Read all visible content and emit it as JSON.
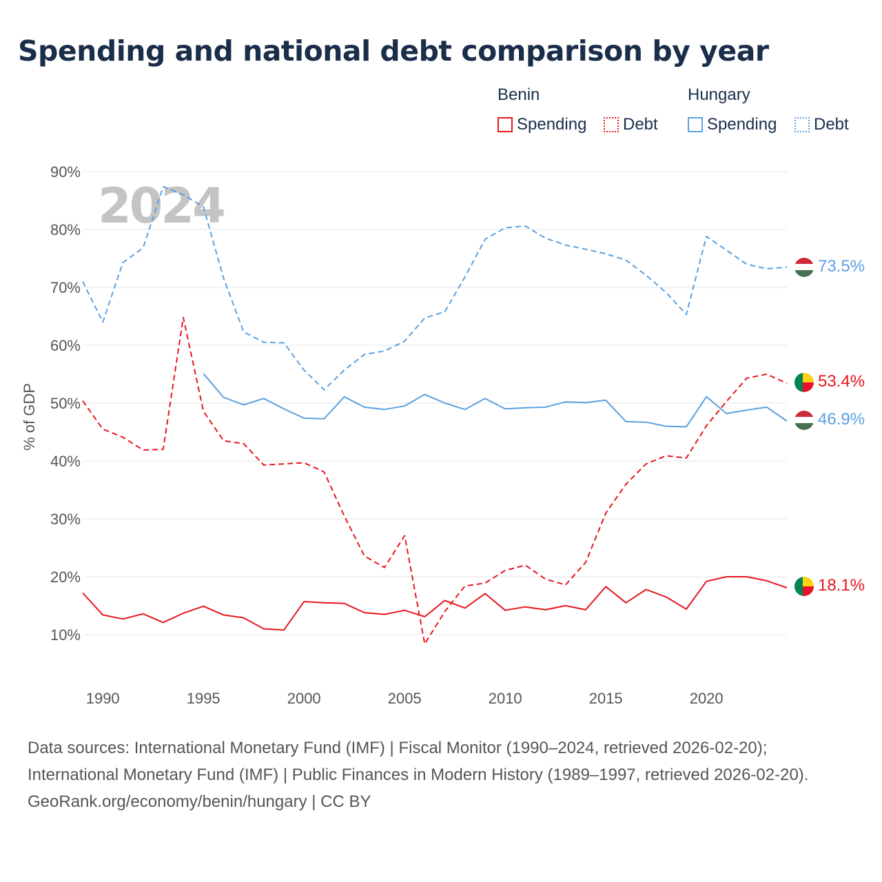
{
  "title": "Spending and national debt comparison by year",
  "legend": {
    "groups": [
      {
        "country": "Benin",
        "color": "#e8141c",
        "items": [
          {
            "label": "Spending",
            "style": "solid"
          },
          {
            "label": "Debt",
            "style": "dashed"
          }
        ]
      },
      {
        "country": "Hungary",
        "color": "#5aa0e0",
        "items": [
          {
            "label": "Spending",
            "style": "solid"
          },
          {
            "label": "Debt",
            "style": "dashed"
          }
        ]
      }
    ]
  },
  "year_watermark": "2024",
  "footer": {
    "sources": "Data sources: International Monetary Fund (IMF) | Fiscal Monitor (1990–2024, retrieved 2026-02-20); International Monetary Fund (IMF) | Public Finances in Modern History (1989–1997, retrieved 2026-02-20).",
    "credit": "GeoRank.org/economy/benin/hungary | CC BY"
  },
  "chart_data": {
    "type": "line",
    "title": "Spending and national debt comparison by year",
    "xlabel": "",
    "ylabel": "% of GDP",
    "xlim": [
      1989,
      2024
    ],
    "ylim": [
      5,
      90
    ],
    "y_ticks": [
      10,
      20,
      30,
      40,
      50,
      60,
      70,
      80,
      90
    ],
    "y_tick_labels": [
      "10%",
      "20%",
      "30%",
      "40%",
      "50%",
      "60%",
      "70%",
      "80%",
      "90%"
    ],
    "x_ticks": [
      1990,
      1995,
      2000,
      2005,
      2010,
      2015,
      2020
    ],
    "x_tick_labels": [
      "1990",
      "1995",
      "2000",
      "2005",
      "2010",
      "2015",
      "2020"
    ],
    "grid": true,
    "legend_position": "top-right",
    "series": [
      {
        "name": "Hungary Debt",
        "country": "Hungary",
        "color": "#5aa0e0",
        "dash": true,
        "end_label": "73.5%",
        "flag": "hungary",
        "x": [
          1989,
          1990,
          1991,
          1992,
          1993,
          1994,
          1995,
          1996,
          1997,
          1998,
          1999,
          2000,
          2001,
          2002,
          2003,
          2004,
          2005,
          2006,
          2007,
          2008,
          2009,
          2010,
          2011,
          2012,
          2013,
          2014,
          2015,
          2016,
          2017,
          2018,
          2019,
          2020,
          2021,
          2022,
          2023,
          2024
        ],
        "values": [
          71.0,
          64.0,
          74.3,
          76.8,
          87.4,
          86.0,
          83.9,
          71.6,
          62.3,
          60.5,
          60.4,
          55.7,
          52.3,
          55.7,
          58.4,
          59.0,
          60.7,
          64.7,
          65.8,
          71.8,
          78.3,
          80.3,
          80.6,
          78.5,
          77.3,
          76.6,
          75.8,
          74.7,
          72.1,
          69.1,
          65.3,
          78.8,
          76.4,
          74.0,
          73.2,
          73.5
        ]
      },
      {
        "name": "Hungary Spending",
        "country": "Hungary",
        "color": "#5aa0e0",
        "dash": false,
        "end_label": "46.9%",
        "flag": "hungary",
        "x": [
          1995,
          1996,
          1997,
          1998,
          1999,
          2000,
          2001,
          2002,
          2003,
          2004,
          2005,
          2006,
          2007,
          2008,
          2009,
          2010,
          2011,
          2012,
          2013,
          2014,
          2015,
          2016,
          2017,
          2018,
          2019,
          2020,
          2021,
          2022,
          2023,
          2024
        ],
        "values": [
          55.1,
          51.0,
          49.7,
          50.8,
          49.0,
          47.4,
          47.3,
          51.1,
          49.3,
          48.9,
          49.5,
          51.5,
          50.0,
          48.9,
          50.8,
          49.0,
          49.2,
          49.3,
          50.2,
          50.1,
          50.5,
          46.8,
          46.7,
          46.0,
          45.9,
          51.1,
          48.2,
          48.8,
          49.3,
          46.9
        ]
      },
      {
        "name": "Benin Debt",
        "country": "Benin",
        "color": "#e8141c",
        "dash": true,
        "end_label": "53.4%",
        "flag": "benin",
        "x": [
          1989,
          1990,
          1991,
          1992,
          1993,
          1994,
          1995,
          1996,
          1997,
          1998,
          1999,
          2000,
          2001,
          2002,
          2003,
          2004,
          2005,
          2006,
          2007,
          2008,
          2009,
          2010,
          2011,
          2012,
          2013,
          2014,
          2015,
          2016,
          2017,
          2018,
          2019,
          2020,
          2021,
          2022,
          2023,
          2024
        ],
        "values": [
          50.4,
          45.5,
          44.1,
          41.9,
          42.0,
          64.8,
          48.6,
          43.5,
          43.0,
          39.3,
          39.5,
          39.7,
          38.1,
          30.5,
          23.6,
          21.6,
          27.1,
          8.4,
          14.0,
          18.4,
          18.9,
          21.1,
          22.0,
          19.6,
          18.6,
          22.5,
          31.0,
          36.0,
          39.5,
          40.9,
          40.5,
          46.1,
          50.3,
          54.3,
          55.0,
          53.4
        ]
      },
      {
        "name": "Benin Spending",
        "country": "Benin",
        "color": "#e8141c",
        "dash": false,
        "end_label": "18.1%",
        "flag": "benin",
        "x": [
          1989,
          1990,
          1991,
          1992,
          1993,
          1994,
          1995,
          1996,
          1997,
          1998,
          1999,
          2000,
          2001,
          2002,
          2003,
          2004,
          2005,
          2006,
          2007,
          2008,
          2009,
          2010,
          2011,
          2012,
          2013,
          2014,
          2015,
          2016,
          2017,
          2018,
          2019,
          2020,
          2021,
          2022,
          2023,
          2024
        ],
        "values": [
          17.2,
          13.4,
          12.7,
          13.6,
          12.1,
          13.7,
          14.9,
          13.4,
          12.9,
          11.0,
          10.8,
          15.7,
          15.5,
          15.4,
          13.8,
          13.5,
          14.2,
          13.1,
          15.9,
          14.6,
          17.1,
          14.2,
          14.8,
          14.3,
          15.0,
          14.3,
          18.3,
          15.5,
          17.8,
          16.5,
          14.4,
          19.2,
          20.0,
          20.0,
          19.3,
          18.1
        ]
      }
    ]
  }
}
